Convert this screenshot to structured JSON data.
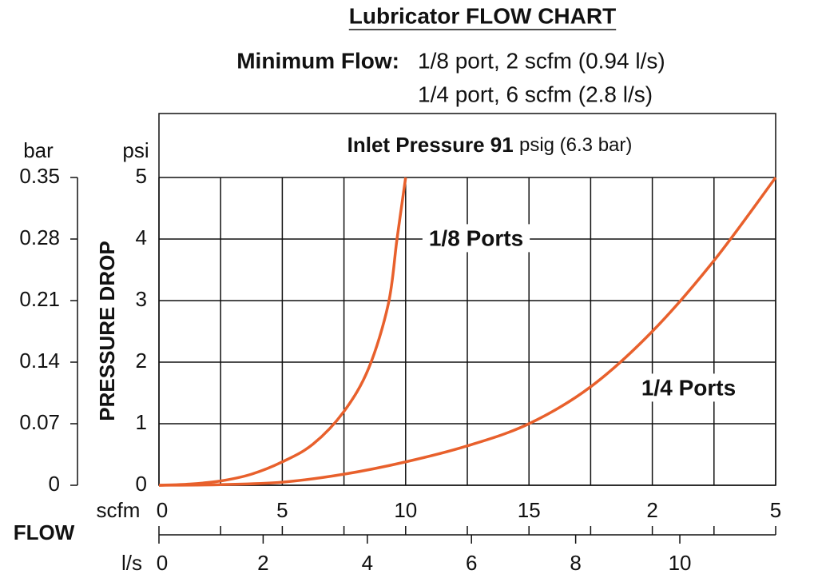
{
  "chart_data": {
    "type": "line",
    "title": "Lubricator FLOW CHART",
    "subtitle_label": "Minimum Flow:",
    "subtitle_lines": [
      "1/8 port, 2 scfm (0.94 l/s)",
      "1/4 port, 6 scfm (2.8 l/s)"
    ],
    "annotation": {
      "bold": "Inlet Pressure 91",
      "normal": "psig (6.3 bar)"
    },
    "ylabel": "PRESSURE DROP",
    "y_unit": "psi",
    "y2_unit": "bar",
    "x_unit": "scfm",
    "x2_unit": "l/s",
    "xlabel": "FLOW",
    "xlim": [
      0,
      25
    ],
    "xticks": [
      0,
      5,
      10,
      15,
      {
        "value": 20,
        "label": "2"
      },
      {
        "value": 25,
        "label": "5"
      }
    ],
    "x_minor_ticks": [
      2.5,
      7.5,
      12.5,
      17.5,
      22.5
    ],
    "x2lim": [
      0,
      11.84
    ],
    "x2ticks": [
      0,
      2,
      4,
      6,
      8,
      10
    ],
    "ylim": [
      0,
      5
    ],
    "yticks": [
      0,
      1,
      2,
      3,
      4,
      5
    ],
    "y2lim": [
      0,
      0.35
    ],
    "y2ticks": [
      0,
      0.07,
      0.14,
      0.21,
      0.28,
      0.35
    ],
    "grid": true,
    "series": [
      {
        "name": "1/8 Ports",
        "color": "#e8602c",
        "x": [
          0,
          1.25,
          2.5,
          3.75,
          5,
          6.25,
          7.5,
          8.5,
          9.3,
          9.65,
          10
        ],
        "values": [
          0,
          0.02,
          0.07,
          0.18,
          0.38,
          0.67,
          1.2,
          1.9,
          2.95,
          4.0,
          5.0
        ]
      },
      {
        "name": "1/4 Ports",
        "color": "#e8602c",
        "x": [
          0,
          2.5,
          5,
          7.5,
          10,
          12.5,
          15,
          17.5,
          20,
          22.5,
          25
        ],
        "values": [
          0,
          0.01,
          0.05,
          0.18,
          0.38,
          0.64,
          1.0,
          1.6,
          2.5,
          3.65,
          5.0
        ]
      }
    ]
  }
}
